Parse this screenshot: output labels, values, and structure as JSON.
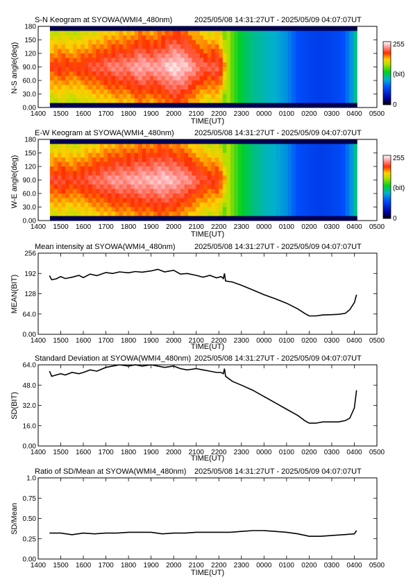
{
  "time_range": "2025/05/08 14:31:27UT - 2025/05/09 04:07:07UT",
  "time_ticks": [
    "1400",
    "1500",
    "1600",
    "1700",
    "1800",
    "1900",
    "2000",
    "2100",
    "2200",
    "2300",
    "0000",
    "0100",
    "0200",
    "0300",
    "0400",
    "0500"
  ],
  "xlabel": "TIME(UT)",
  "keogram": {
    "station": "SYOWA(WMI4_480nm)",
    "colorbar": {
      "max_label": "255",
      "unit_label": "(bit)",
      "min_label": "0"
    },
    "angle_ticks": [
      "0.00",
      "30.0",
      "60.0",
      "90.0",
      "120",
      "150",
      "180"
    ]
  },
  "chart_data": [
    {
      "type": "heatmap",
      "title": "S-N Keogram at SYOWA(WMI4_480nm)",
      "ylabel": "N-S angle(deg)",
      "ylim": [
        0,
        180
      ],
      "x_hours": [
        14.52,
        15.0,
        15.5,
        16.0,
        16.5,
        17.0,
        17.5,
        18.0,
        18.5,
        19.0,
        19.5,
        20.0,
        20.5,
        21.0,
        21.5,
        22.0,
        22.5,
        23.0,
        23.5,
        24.0,
        24.5,
        25.0,
        25.5,
        26.0,
        26.5,
        27.0,
        27.5,
        28.0,
        28.12
      ],
      "intensity_level": [
        0.78,
        0.8,
        0.78,
        0.8,
        0.82,
        0.84,
        0.86,
        0.86,
        0.9,
        0.88,
        0.9,
        0.94,
        0.92,
        0.86,
        0.82,
        0.84,
        0.6,
        0.5,
        0.45,
        0.42,
        0.4,
        0.36,
        0.27,
        0.25,
        0.24,
        0.25,
        0.27,
        0.4,
        0.55
      ]
    },
    {
      "type": "heatmap",
      "title": "E-W Keogram at SYOWA(WMI4_480nm)",
      "ylabel": "W-E angle(deg)",
      "ylim": [
        0,
        180
      ],
      "x_hours": [
        14.52,
        15.0,
        15.5,
        16.0,
        16.5,
        17.0,
        17.5,
        18.0,
        18.5,
        19.0,
        19.5,
        20.0,
        20.5,
        21.0,
        21.5,
        22.0,
        22.5,
        23.0,
        23.5,
        24.0,
        24.5,
        25.0,
        25.5,
        26.0,
        26.5,
        27.0,
        27.5,
        28.0,
        28.12
      ],
      "intensity_level": [
        0.8,
        0.82,
        0.8,
        0.82,
        0.84,
        0.86,
        0.88,
        0.88,
        0.9,
        0.9,
        0.92,
        0.9,
        0.88,
        0.84,
        0.8,
        0.8,
        0.62,
        0.52,
        0.46,
        0.42,
        0.4,
        0.36,
        0.27,
        0.25,
        0.24,
        0.25,
        0.27,
        0.4,
        0.55
      ]
    },
    {
      "type": "line",
      "title": "Mean intensity at SYOWA(WMI4_480nm)",
      "ylabel": "MEAN(BIT)",
      "xlabel": "TIME(UT)",
      "ylim": [
        0,
        256
      ],
      "yticks": [
        "0.00",
        "64.0",
        "128",
        "192",
        "256"
      ],
      "x": [
        14.5,
        14.6,
        14.8,
        15.0,
        15.2,
        15.5,
        15.8,
        16.0,
        16.3,
        16.6,
        17.0,
        17.3,
        17.6,
        18.0,
        18.3,
        18.6,
        19.0,
        19.3,
        19.6,
        20.0,
        20.3,
        20.6,
        21.0,
        21.3,
        21.6,
        21.9,
        22.1,
        22.2,
        22.25,
        22.3,
        22.6,
        23.0,
        23.5,
        24.0,
        24.5,
        25.0,
        25.5,
        25.8,
        26.0,
        26.3,
        26.6,
        27.0,
        27.3,
        27.6,
        27.8,
        28.0,
        28.1
      ],
      "y": [
        185,
        172,
        175,
        182,
        176,
        180,
        186,
        179,
        190,
        185,
        195,
        192,
        197,
        194,
        198,
        196,
        200,
        205,
        197,
        202,
        190,
        192,
        186,
        180,
        186,
        178,
        182,
        176,
        192,
        168,
        165,
        155,
        140,
        125,
        112,
        98,
        80,
        66,
        58,
        58,
        61,
        62,
        63,
        66,
        78,
        100,
        125
      ]
    },
    {
      "type": "line",
      "title": "Standard Deviation at SYOWA(WMI4_480nm)",
      "ylabel": "SD(BIT)",
      "xlabel": "TIME(UT)",
      "ylim": [
        0,
        64
      ],
      "yticks": [
        "0.00",
        "16.0",
        "32.0",
        "48.0",
        "64.0"
      ],
      "x": [
        14.5,
        14.6,
        14.8,
        15.0,
        15.2,
        15.5,
        15.8,
        16.0,
        16.3,
        16.6,
        17.0,
        17.3,
        17.6,
        18.0,
        18.3,
        18.6,
        19.0,
        19.3,
        19.6,
        20.0,
        20.3,
        20.6,
        21.0,
        21.3,
        21.6,
        21.9,
        22.1,
        22.2,
        22.25,
        22.3,
        22.6,
        23.0,
        23.5,
        24.0,
        24.5,
        25.0,
        25.5,
        25.8,
        26.0,
        26.3,
        26.6,
        27.0,
        27.3,
        27.6,
        27.8,
        28.0,
        28.1
      ],
      "y": [
        59,
        55,
        56,
        57,
        56,
        58,
        57,
        58,
        60,
        59,
        62,
        63,
        64,
        63,
        64,
        63,
        64,
        63,
        62,
        63,
        61,
        60,
        61,
        60,
        59,
        58,
        58,
        57,
        61,
        55,
        51,
        48,
        44,
        39,
        34,
        29,
        24,
        20,
        18,
        18,
        19,
        19,
        19,
        20,
        22,
        30,
        44
      ]
    },
    {
      "type": "line",
      "title": "Ratio of SD/Mean at SYOWA(WMI4_480nm)",
      "ylabel": "SD/Mean",
      "xlabel": "TIME(UT)",
      "ylim": [
        0,
        1
      ],
      "yticks": [
        "0.00",
        "0.25",
        "0.50",
        "0.75",
        "1.0"
      ],
      "x": [
        14.5,
        15.0,
        15.5,
        16.0,
        16.5,
        17.0,
        17.5,
        18.0,
        18.5,
        19.0,
        19.5,
        20.0,
        20.5,
        21.0,
        21.5,
        22.0,
        22.5,
        23.0,
        23.5,
        24.0,
        24.5,
        25.0,
        25.5,
        26.0,
        26.5,
        27.0,
        27.5,
        28.0,
        28.1
      ],
      "y": [
        0.32,
        0.32,
        0.3,
        0.32,
        0.31,
        0.32,
        0.32,
        0.33,
        0.33,
        0.33,
        0.31,
        0.32,
        0.32,
        0.33,
        0.33,
        0.33,
        0.33,
        0.34,
        0.35,
        0.35,
        0.34,
        0.33,
        0.31,
        0.28,
        0.28,
        0.29,
        0.3,
        0.31,
        0.35
      ]
    }
  ]
}
